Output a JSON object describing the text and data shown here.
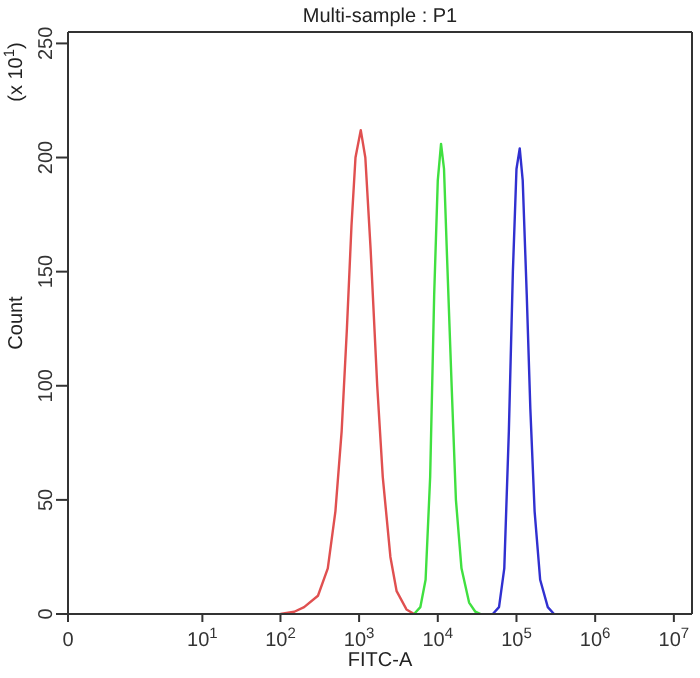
{
  "chart_data": {
    "type": "line",
    "title": "Multi-sample : P1",
    "xlabel": "FITC-A",
    "ylabel": "Count",
    "annotations": [
      "(x 10$^{1}$)"
    ],
    "log": "x",
    "grid": false,
    "marker": "none",
    "line_style": "solid",
    "xlim": [
      0,
      17000000
    ],
    "ylim": [
      0,
      255
    ],
    "xticks": [
      0,
      {
        "value": 10,
        "label": "10$^{1}$"
      },
      {
        "value": 100,
        "label": "10$^{2}$"
      },
      {
        "value": 1000,
        "label": "10$^{3}$"
      },
      {
        "value": 10000,
        "label": "10$^{4}$"
      },
      {
        "value": 100000,
        "label": "10$^{5}$"
      },
      {
        "value": 1000000,
        "label": "10$^{6}$"
      },
      {
        "value": 10000000,
        "label": "10$^{7}$"
      }
    ],
    "yticks": [
      0,
      50,
      100,
      150,
      200,
      250
    ],
    "series": [
      {
        "color": "#e05050",
        "x": [
          100,
          150,
          200,
          300,
          400,
          500,
          600,
          700,
          800,
          900,
          1050,
          1200,
          1400,
          1700,
          2000,
          2500,
          3000,
          4000,
          5000
        ],
        "values": [
          0,
          1,
          3,
          8,
          20,
          45,
          80,
          125,
          170,
          200,
          212,
          200,
          160,
          100,
          60,
          25,
          10,
          2,
          0
        ]
      },
      {
        "color": "#40e040",
        "x": [
          5000,
          6000,
          7000,
          8000,
          9000,
          10000,
          11000,
          12000,
          13000,
          15000,
          17000,
          20000,
          25000,
          30000,
          35000
        ],
        "values": [
          0,
          3,
          15,
          60,
          140,
          190,
          206,
          195,
          160,
          100,
          50,
          20,
          5,
          1,
          0
        ]
      },
      {
        "color": "#3030d0",
        "x": [
          50000,
          60000,
          70000,
          80000,
          90000,
          100000,
          110000,
          120000,
          135000,
          150000,
          170000,
          200000,
          250000,
          300000
        ],
        "values": [
          0,
          3,
          20,
          80,
          150,
          195,
          204,
          190,
          140,
          90,
          45,
          15,
          3,
          0
        ]
      }
    ]
  }
}
